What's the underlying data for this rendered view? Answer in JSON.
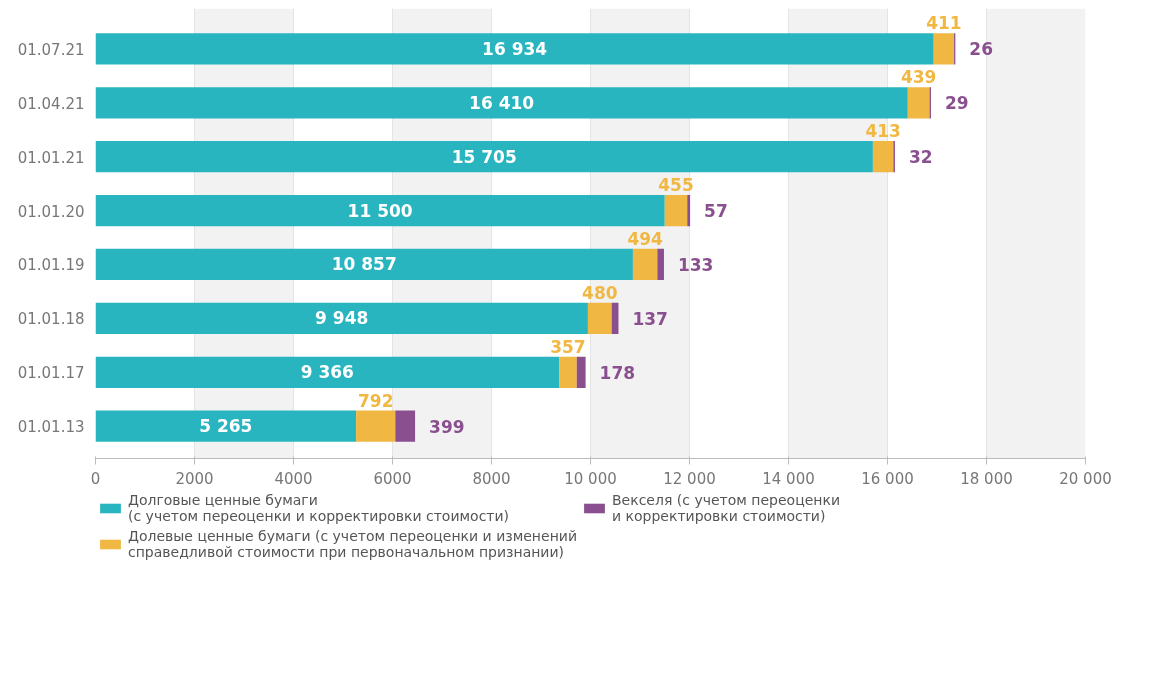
{
  "chart_data": {
    "type": "bar",
    "orientation": "horizontal",
    "stacked": true,
    "categories": [
      "01.07.21",
      "01.04.21",
      "01.01.21",
      "01.01.20",
      "01.01.19",
      "01.01.18",
      "01.01.17",
      "01.01.13"
    ],
    "series": [
      {
        "name": "Долговые ценные бумаги\n(с учетом переоценки и корректировки стоимости)",
        "color": "#29b5bf",
        "values": [
          16934,
          16410,
          15705,
          11500,
          10857,
          9948,
          9366,
          5265
        ],
        "value_labels": [
          "16 934",
          "16 410",
          "15 705",
          "11 500",
          "10 857",
          "9 948",
          "9 366",
          "5 265"
        ]
      },
      {
        "name": "Долевые ценные бумаги (с учетом переоценки и изменений\nсправедливой стоимости при первоначальном признании)",
        "color": "#f0b843",
        "values": [
          411,
          439,
          413,
          455,
          494,
          480,
          357,
          792
        ],
        "value_labels": [
          "411",
          "439",
          "413",
          "455",
          "494",
          "480",
          "357",
          "792"
        ]
      },
      {
        "name": "Векселя (с учетом переоценки\nи корректировки стоимости)",
        "color": "#8a4f8f",
        "values": [
          26,
          29,
          32,
          57,
          133,
          137,
          178,
          399
        ],
        "value_labels": [
          "26",
          "29",
          "32",
          "57",
          "133",
          "137",
          "178",
          "399"
        ]
      }
    ],
    "xlim": [
      0,
      20000
    ],
    "xticks": [
      0,
      2000,
      4000,
      6000,
      8000,
      {
        "value": 10000,
        "label": "10 000"
      },
      {
        "value": 12000,
        "label": "12 000"
      },
      {
        "value": 14000,
        "label": "14 000"
      },
      {
        "value": 16000,
        "label": "16 000"
      },
      {
        "value": 18000,
        "label": "18 000"
      },
      {
        "value": 20000,
        "label": "20 000"
      }
    ],
    "grid": "x",
    "legend": "bottom"
  }
}
